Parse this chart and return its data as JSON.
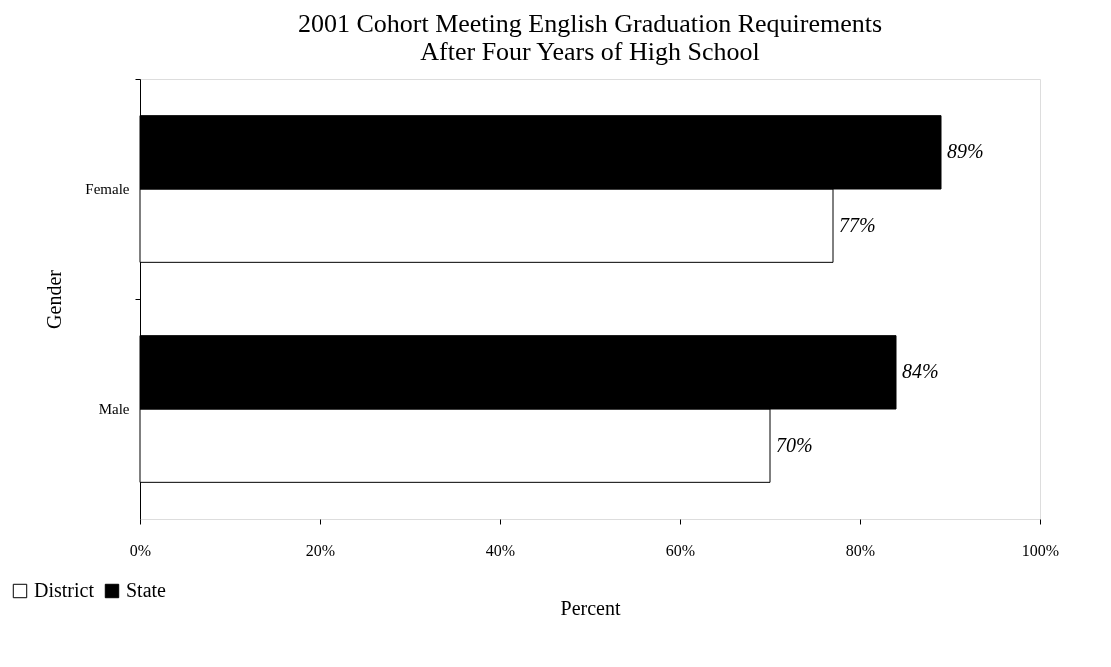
{
  "chart_data": {
    "type": "bar",
    "orientation": "horizontal",
    "title": [
      "2001 Cohort Meeting English Graduation Requirements",
      "After Four Years of High School"
    ],
    "xlabel": "Percent",
    "ylabel": "Gender",
    "categories": [
      "Female",
      "Male"
    ],
    "series": [
      {
        "name": "District",
        "color": "#ffffff",
        "values": [
          77,
          70
        ],
        "value_labels": [
          "77%",
          "70%"
        ]
      },
      {
        "name": "State",
        "color": "#000000",
        "values": [
          89,
          84
        ],
        "value_labels": [
          "89%",
          "84%"
        ]
      }
    ],
    "xlim": [
      0,
      100
    ],
    "xticks": [
      {
        "value": 0,
        "label": "0%"
      },
      {
        "value": 20,
        "label": "20%"
      },
      {
        "value": 40,
        "label": "40%"
      },
      {
        "value": 60,
        "label": "60%"
      },
      {
        "value": 80,
        "label": "80%"
      },
      {
        "value": 100,
        "label": "100%"
      }
    ],
    "legend": "bottom left"
  }
}
